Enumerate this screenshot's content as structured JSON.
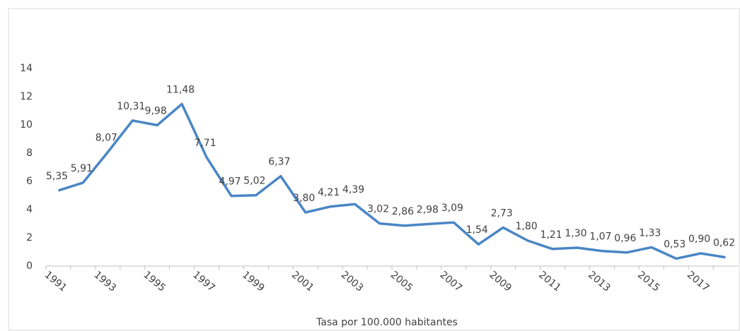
{
  "chart_data": {
    "type": "line",
    "x_label": "Tasa por 100.000 habitantes",
    "categories": [
      "1991",
      null,
      "1993",
      null,
      "1995",
      null,
      "1997",
      null,
      "1999",
      null,
      "2001",
      null,
      "2003",
      null,
      "2005",
      null,
      "2007",
      null,
      "2009",
      null,
      "2011",
      null,
      "2013",
      null,
      "2015",
      null,
      "2017",
      null
    ],
    "values": [
      5.35,
      5.91,
      8.07,
      10.31,
      9.98,
      11.48,
      7.71,
      4.97,
      5.02,
      6.37,
      3.8,
      4.21,
      4.39,
      3.02,
      2.86,
      2.98,
      3.09,
      1.54,
      2.73,
      1.8,
      1.21,
      1.3,
      1.07,
      0.96,
      1.33,
      0.53,
      0.9,
      0.62
    ],
    "value_labels": [
      "5,35",
      "5,91",
      "8,07",
      "10,31",
      "9,98",
      "11,48",
      "7,71",
      "4,97",
      "5,02",
      "6,37",
      "3,80",
      "4,21",
      "4,39",
      "3,02",
      "2,86",
      "2,98",
      "3,09",
      "1,54",
      "2,73",
      "1,80",
      "1,21",
      "1,30",
      "1,07",
      "0,96",
      "1,33",
      "0,53",
      "0,90",
      "0,62"
    ],
    "color": "#4a86c5",
    "ylim": [
      0,
      14
    ],
    "yticks": [
      0,
      2,
      4,
      6,
      8,
      10,
      12,
      14
    ],
    "grid": false
  }
}
